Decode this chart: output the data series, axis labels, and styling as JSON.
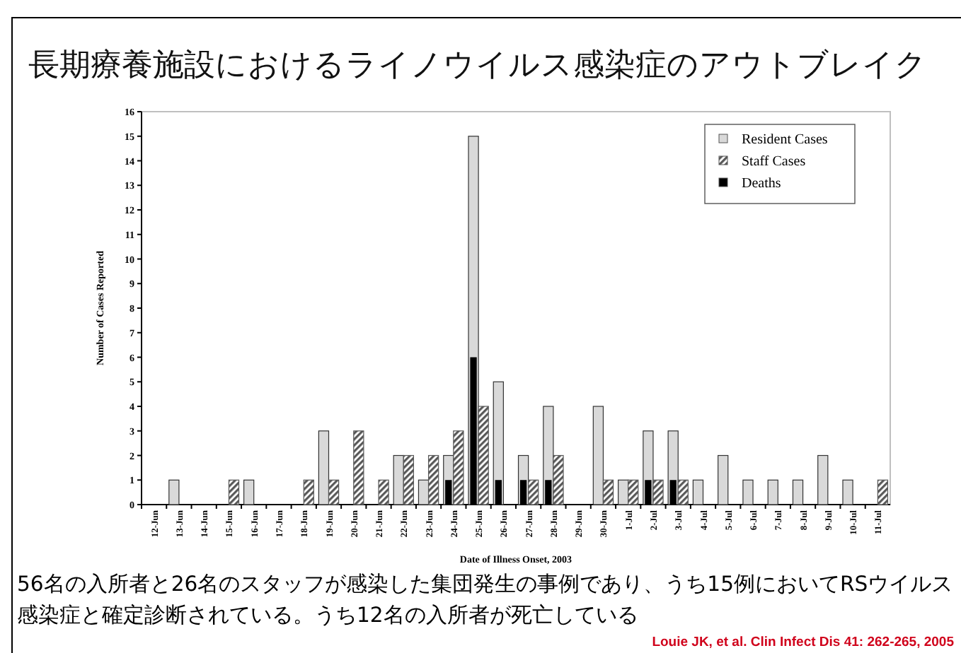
{
  "chart_data": {
    "type": "bar",
    "title": "長期療養施設におけるライノウイルス感染症のアウトブレイク",
    "xlabel": "Date of Illness Onset, 2003",
    "ylabel": "Number of Cases Reported",
    "categories": [
      "12-Jun",
      "13-Jun",
      "14-Jun",
      "15-Jun",
      "16-Jun",
      "17-Jun",
      "18-Jun",
      "19-Jun",
      "20-Jun",
      "21-Jun",
      "22-Jun",
      "23-Jun",
      "24-Jun",
      "25-Jun",
      "26-Jun",
      "27-Jun",
      "28-Jun",
      "29-Jun",
      "30-Jun",
      "1-Jul",
      "2-Jul",
      "3-Jul",
      "4-Jul",
      "5-Jul",
      "6-Jul",
      "7-Jul",
      "8-Jul",
      "9-Jul",
      "10-Jul",
      "11-Jul"
    ],
    "series": [
      {
        "name": "Resident Cases",
        "color": "#d9d9d9",
        "values": [
          0,
          1,
          0,
          0,
          1,
          0,
          0,
          3,
          0,
          0,
          2,
          1,
          2,
          15,
          5,
          2,
          4,
          0,
          4,
          1,
          3,
          3,
          1,
          2,
          1,
          1,
          1,
          2,
          1,
          0
        ]
      },
      {
        "name": "Staff Cases",
        "color": "#595959",
        "values": [
          0,
          0,
          0,
          1,
          0,
          0,
          1,
          1,
          3,
          1,
          2,
          2,
          3,
          4,
          0,
          1,
          2,
          0,
          1,
          1,
          1,
          1,
          0,
          0,
          0,
          0,
          0,
          0,
          0,
          1
        ]
      },
      {
        "name": "Deaths",
        "color": "#000000",
        "values": [
          0,
          0,
          0,
          0,
          0,
          0,
          0,
          0,
          0,
          0,
          0,
          0,
          1,
          6,
          1,
          1,
          1,
          0,
          0,
          0,
          1,
          1,
          0,
          0,
          0,
          0,
          0,
          0,
          0,
          0
        ]
      }
    ],
    "ylim": [
      0,
      16
    ],
    "yticks": [
      0,
      1,
      2,
      3,
      4,
      5,
      6,
      7,
      8,
      9,
      10,
      11,
      12,
      13,
      14,
      15,
      16
    ],
    "legend": "top right",
    "grid": false,
    "annotations": [
      "56名の入所者と26名のスタッフが感染した集団発生の事例であり、うち15例においてRSウイルス感染症と確定診断されている。うち12名の入所者が死亡している",
      "Louie JK, et al. Clin Infect Dis 41: 262-265, 2005"
    ]
  }
}
